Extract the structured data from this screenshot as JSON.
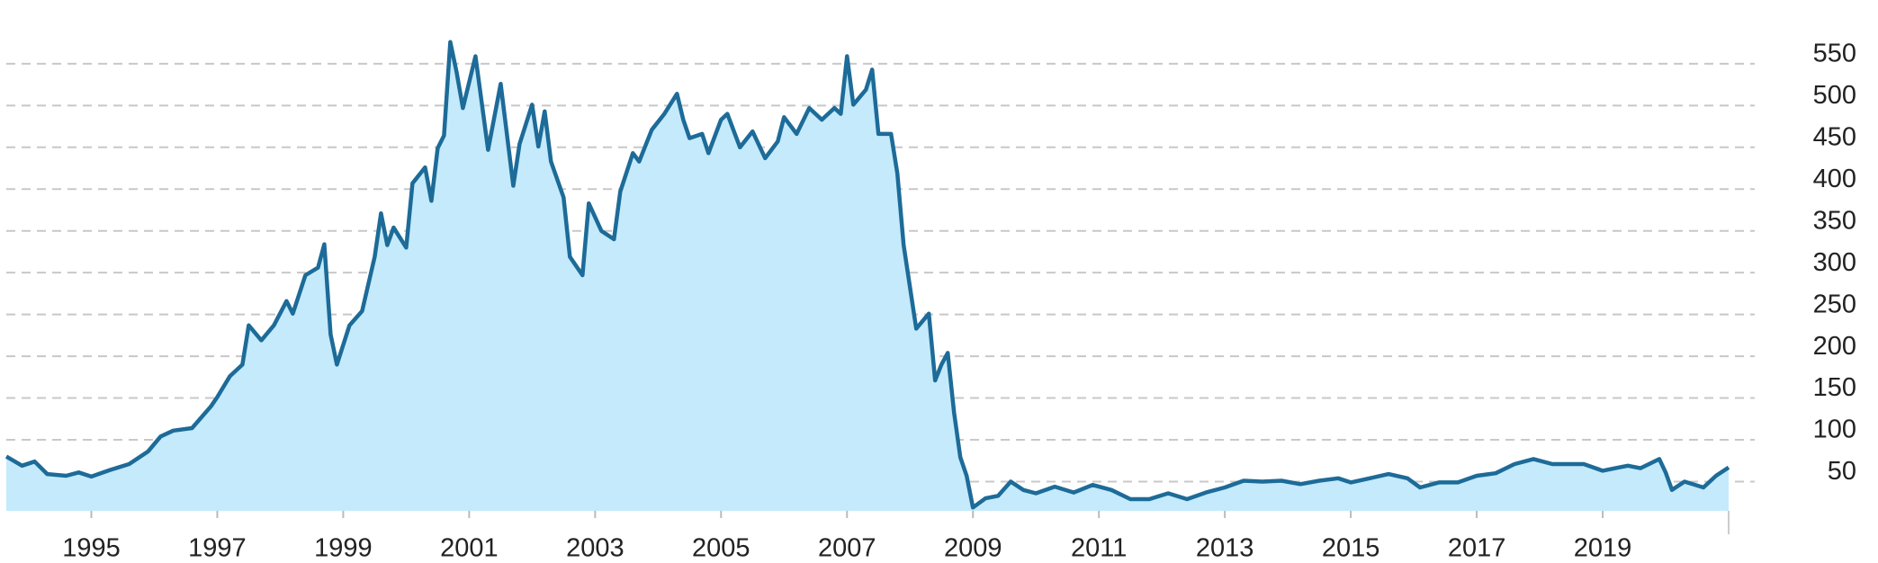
{
  "chart_data": {
    "type": "area",
    "x": [
      1993.65,
      1993.9,
      1994.1,
      1994.3,
      1994.6,
      1994.8,
      1995.0,
      1995.3,
      1995.6,
      1995.9,
      1996.1,
      1996.3,
      1996.6,
      1996.9,
      1997.0,
      1997.2,
      1997.4,
      1997.5,
      1997.7,
      1997.9,
      1998.1,
      1998.2,
      1998.4,
      1998.6,
      1998.7,
      1998.8,
      1998.9,
      1999.1,
      1999.3,
      1999.5,
      1999.6,
      1999.7,
      1999.8,
      2000.0,
      2000.1,
      2000.3,
      2000.4,
      2000.5,
      2000.6,
      2000.7,
      2000.8,
      2000.9,
      2001.1,
      2001.3,
      2001.5,
      2001.7,
      2001.8,
      2002.0,
      2002.1,
      2002.2,
      2002.3,
      2002.5,
      2002.6,
      2002.8,
      2002.9,
      2003.1,
      2003.3,
      2003.4,
      2003.6,
      2003.7,
      2003.9,
      2004.1,
      2004.3,
      2004.4,
      2004.5,
      2004.7,
      2004.8,
      2005.0,
      2005.1,
      2005.3,
      2005.5,
      2005.7,
      2005.9,
      2006.0,
      2006.2,
      2006.4,
      2006.6,
      2006.8,
      2006.9,
      2007.0,
      2007.1,
      2007.3,
      2007.4,
      2007.5,
      2007.7,
      2007.8,
      2007.9,
      2008.0,
      2008.1,
      2008.3,
      2008.4,
      2008.5,
      2008.6,
      2008.7,
      2008.8,
      2008.9,
      2009.0,
      2009.2,
      2009.4,
      2009.6,
      2009.8,
      2010.0,
      2010.3,
      2010.6,
      2010.9,
      2011.2,
      2011.5,
      2011.8,
      2012.1,
      2012.4,
      2012.7,
      2013.0,
      2013.3,
      2013.6,
      2013.9,
      2014.2,
      2014.5,
      2014.8,
      2015.0,
      2015.3,
      2015.6,
      2015.9,
      2016.1,
      2016.4,
      2016.7,
      2017.0,
      2017.3,
      2017.6,
      2017.9,
      2018.2,
      2018.5,
      2018.7,
      2019.0,
      2019.2,
      2019.4,
      2019.6,
      2019.9,
      2020.0,
      2020.1,
      2020.3,
      2020.6,
      2020.8,
      2021.0
    ],
    "values": [
      80,
      69,
      74,
      59,
      57,
      61,
      56,
      64,
      71,
      86,
      104,
      111,
      114,
      140,
      151,
      176,
      190,
      237,
      219,
      237,
      266,
      251,
      297,
      306,
      334,
      226,
      190,
      237,
      254,
      319,
      371,
      333,
      354,
      330,
      407,
      426,
      386,
      449,
      464,
      576,
      540,
      497,
      559,
      447,
      526,
      404,
      454,
      501,
      451,
      493,
      433,
      390,
      319,
      297,
      383,
      350,
      340,
      397,
      443,
      433,
      471,
      490,
      514,
      483,
      461,
      466,
      443,
      483,
      490,
      450,
      469,
      437,
      457,
      486,
      466,
      497,
      483,
      497,
      490,
      559,
      501,
      519,
      543,
      466,
      466,
      419,
      333,
      283,
      233,
      251,
      171,
      190,
      204,
      133,
      79,
      57,
      19,
      30,
      33,
      50,
      40,
      36,
      44,
      37,
      46,
      40,
      29,
      29,
      36,
      29,
      37,
      43,
      51,
      50,
      51,
      47,
      51,
      54,
      49,
      54,
      59,
      54,
      43,
      49,
      49,
      57,
      60,
      71,
      77,
      71,
      71,
      71,
      63,
      66,
      69,
      66,
      77,
      61,
      40,
      50,
      43,
      57,
      67
    ],
    "color": "#1d6b98",
    "fill": "#c4eafb",
    "xlim": [
      1993.65,
      2021.0
    ],
    "xticks": [
      1995,
      1997,
      1999,
      2001,
      2003,
      2005,
      2007,
      2009,
      2011,
      2013,
      2015,
      2017,
      2019
    ],
    "ylim": [
      15,
      580
    ],
    "yticks": [
      50,
      100,
      150,
      200,
      250,
      300,
      350,
      400,
      450,
      500,
      550
    ],
    "grid": true
  }
}
